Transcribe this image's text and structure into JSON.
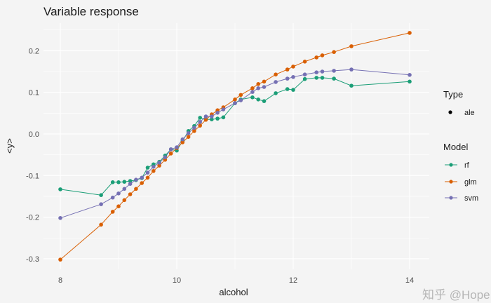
{
  "chart_data": {
    "type": "line",
    "title": "Variable response",
    "xlabel": "alcohol",
    "ylabel": "<y>",
    "xlim": [
      7.85,
      14.2
    ],
    "ylim": [
      -0.32,
      0.265
    ],
    "xticks": [
      8,
      10,
      12,
      14
    ],
    "xtick_labels": [
      "8",
      "10",
      "12",
      "14"
    ],
    "yticks": [
      -0.3,
      -0.2,
      -0.1,
      0.0,
      0.1,
      0.2
    ],
    "ytick_labels": [
      "-0.3",
      "-0.2",
      "-0.1",
      "0.0",
      "0.1",
      "0.2"
    ],
    "grid": true,
    "legend_placement": "right",
    "legend": {
      "type_title": "Type",
      "type_entries": [
        {
          "label": "ale",
          "symbol": "point",
          "color": "#000000"
        }
      ],
      "model_title": "Model",
      "model_entries": [
        {
          "label": "rf",
          "color": "#1B9E77"
        },
        {
          "label": "glm",
          "color": "#D95F02"
        },
        {
          "label": "svm",
          "color": "#7570B3"
        }
      ]
    },
    "x": [
      8.0,
      8.7,
      8.9,
      9.0,
      9.1,
      9.2,
      9.3,
      9.4,
      9.5,
      9.6,
      9.7,
      9.8,
      9.9,
      10.0,
      10.1,
      10.2,
      10.3,
      10.4,
      10.5,
      10.6,
      10.7,
      10.8,
      11.0,
      11.1,
      11.3,
      11.4,
      11.5,
      11.7,
      11.9,
      12.0,
      12.2,
      12.4,
      12.5,
      12.7,
      13.0,
      14.0
    ],
    "series": [
      {
        "name": "rf",
        "color": "#1B9E77",
        "values": [
          -0.133,
          -0.147,
          -0.116,
          -0.116,
          -0.115,
          -0.113,
          -0.111,
          -0.106,
          -0.081,
          -0.073,
          -0.067,
          -0.052,
          -0.037,
          -0.04,
          -0.017,
          0.007,
          0.019,
          0.039,
          0.035,
          0.035,
          0.037,
          0.04,
          0.074,
          0.083,
          0.088,
          0.083,
          0.079,
          0.098,
          0.108,
          0.106,
          0.132,
          0.135,
          0.135,
          0.133,
          0.116,
          0.126
        ]
      },
      {
        "name": "glm",
        "color": "#D95F02",
        "values": [
          -0.302,
          -0.218,
          -0.187,
          -0.174,
          -0.159,
          -0.145,
          -0.132,
          -0.118,
          -0.105,
          -0.089,
          -0.076,
          -0.062,
          -0.047,
          -0.034,
          -0.02,
          -0.007,
          0.007,
          0.02,
          0.034,
          0.047,
          0.057,
          0.064,
          0.083,
          0.094,
          0.11,
          0.12,
          0.126,
          0.143,
          0.155,
          0.162,
          0.174,
          0.184,
          0.189,
          0.197,
          0.211,
          0.243
        ]
      },
      {
        "name": "svm",
        "color": "#7570B3",
        "values": [
          -0.202,
          -0.169,
          -0.153,
          -0.143,
          -0.132,
          -0.12,
          -0.11,
          -0.105,
          -0.093,
          -0.079,
          -0.069,
          -0.056,
          -0.037,
          -0.032,
          -0.013,
          0.002,
          0.015,
          0.029,
          0.042,
          0.042,
          0.051,
          0.059,
          0.074,
          0.081,
          0.101,
          0.11,
          0.113,
          0.125,
          0.133,
          0.137,
          0.143,
          0.148,
          0.15,
          0.152,
          0.155,
          0.142
        ]
      }
    ]
  },
  "watermark": "知乎 @HopeR"
}
